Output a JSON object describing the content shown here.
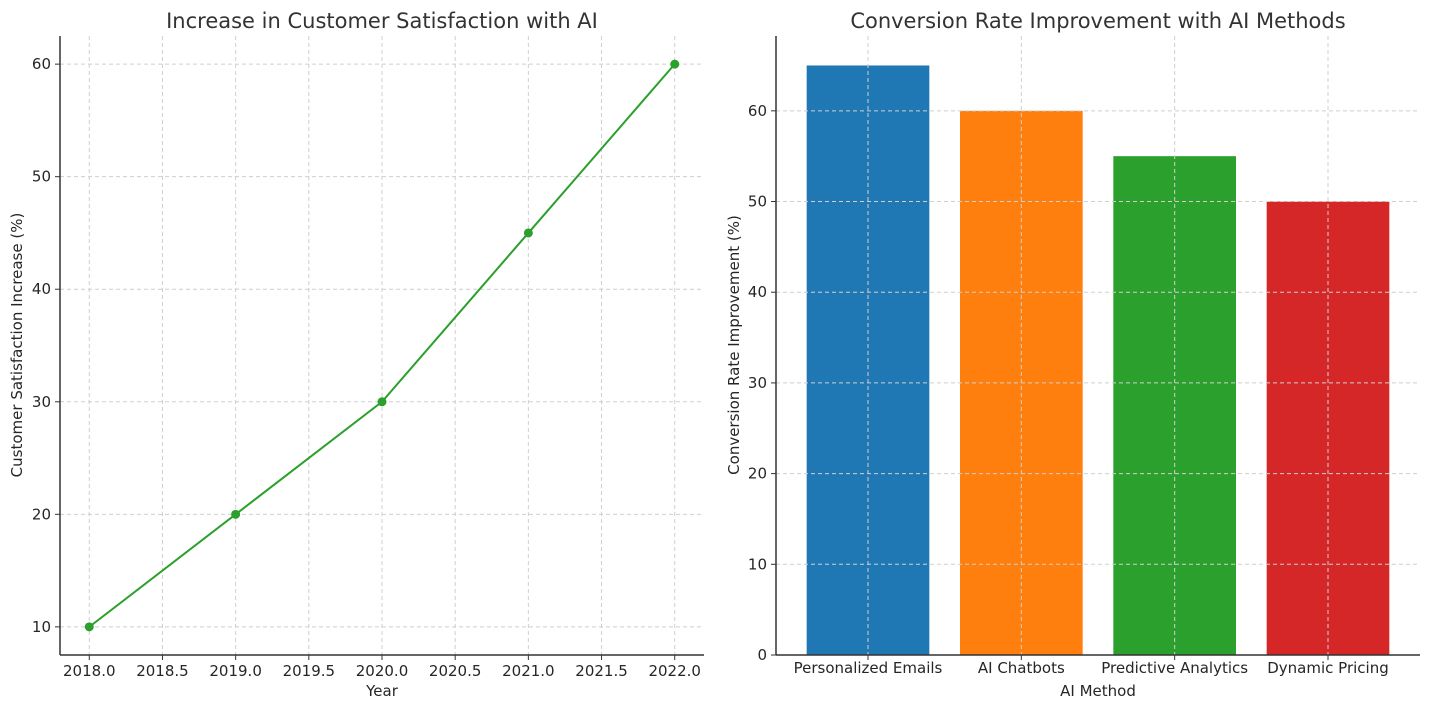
{
  "chart_data": [
    {
      "type": "line",
      "title": "Increase in Customer Satisfaction with AI",
      "xlabel": "Year",
      "ylabel": "Customer Satisfaction Increase (%)",
      "x": [
        2018,
        2019,
        2020,
        2021,
        2022
      ],
      "values": [
        10,
        20,
        30,
        45,
        60
      ],
      "xlim": [
        2017.8,
        2022.2
      ],
      "ylim": [
        7.5,
        62.5
      ],
      "xticks": [
        2018.0,
        2018.5,
        2019.0,
        2019.5,
        2020.0,
        2020.5,
        2021.0,
        2021.5,
        2022.0
      ],
      "xtick_labels": [
        "2018.0",
        "2018.5",
        "2019.0",
        "2019.5",
        "2020.0",
        "2020.5",
        "2021.0",
        "2021.5",
        "2022.0"
      ],
      "yticks": [
        10,
        20,
        30,
        40,
        50,
        60
      ],
      "ytick_labels": [
        "10",
        "20",
        "30",
        "40",
        "50",
        "60"
      ],
      "color": "#2ca02c",
      "marker": "circle",
      "grid": true
    },
    {
      "type": "bar",
      "title": "Conversion Rate Improvement with AI Methods",
      "xlabel": "AI Method",
      "ylabel": "Conversion Rate Improvement (%)",
      "categories": [
        "Personalized Emails",
        "AI Chatbots",
        "Predictive Analytics",
        "Dynamic Pricing"
      ],
      "values": [
        65,
        60,
        55,
        50
      ],
      "colors": [
        "#1f77b4",
        "#ff7f0e",
        "#2ca02c",
        "#d62728"
      ],
      "ylim": [
        0,
        68.25
      ],
      "yticks": [
        0,
        10,
        20,
        30,
        40,
        50,
        60
      ],
      "ytick_labels": [
        "0",
        "10",
        "20",
        "30",
        "40",
        "50",
        "60"
      ],
      "grid": true
    }
  ]
}
